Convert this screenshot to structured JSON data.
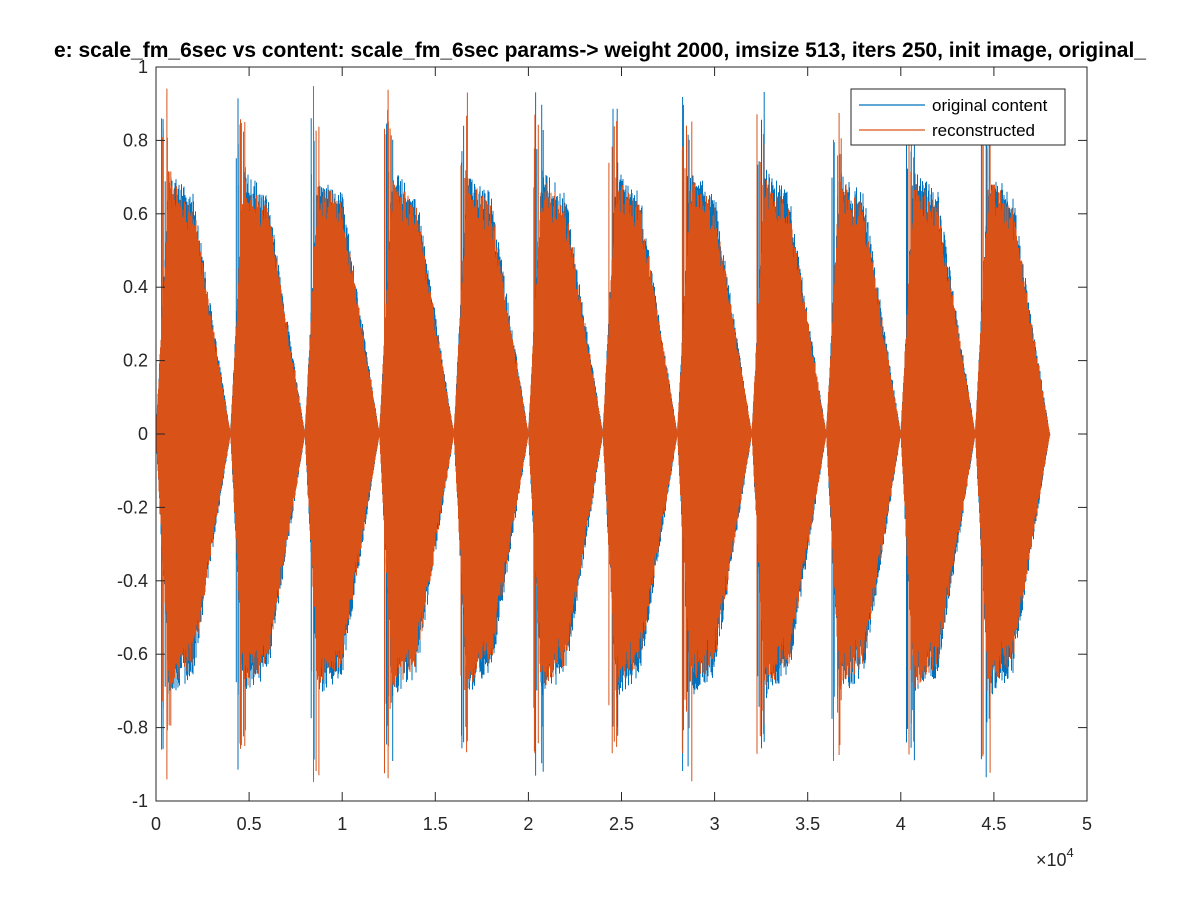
{
  "chart_data": {
    "type": "line",
    "title": "e: scale_fm_6sec vs content: scale_fm_6sec  params-> weight 2000, imsize 513, iters 250, init image, original_",
    "xlabel": "",
    "ylabel": "",
    "xlim": [
      0,
      50000
    ],
    "ylim": [
      -1,
      1
    ],
    "x_ticks": [
      0,
      5000,
      10000,
      15000,
      20000,
      25000,
      30000,
      35000,
      40000,
      45000,
      50000
    ],
    "x_tick_labels": [
      "0",
      "0.5",
      "1",
      "1.5",
      "2",
      "2.5",
      "3",
      "3.5",
      "4",
      "4.5",
      "5"
    ],
    "x_exponent_label": "×10",
    "x_exponent_power": "4",
    "y_ticks": [
      -1,
      -0.8,
      -0.6,
      -0.4,
      -0.2,
      0,
      0.2,
      0.4,
      0.6,
      0.8,
      1
    ],
    "y_tick_labels": [
      "-1",
      "-0.8",
      "-0.6",
      "-0.4",
      "-0.2",
      "0",
      "0.2",
      "0.4",
      "0.6",
      "0.8",
      "1"
    ],
    "grid": false,
    "legend_position": "top-right",
    "segment_count": 12,
    "segment_length": 4000,
    "series": [
      {
        "name": "original content",
        "color": "#0072BD",
        "peak_amplitude": 0.94,
        "envelope": [
          [
            0,
            0
          ],
          [
            700,
            0.72
          ],
          [
            2000,
            0.66
          ],
          [
            4000,
            0
          ]
        ]
      },
      {
        "name": "reconstructed",
        "color": "#D95319",
        "peak_amplitude": 0.95,
        "envelope": [
          [
            0,
            0
          ],
          [
            700,
            0.7
          ],
          [
            2000,
            0.63
          ],
          [
            4000,
            0
          ]
        ]
      }
    ]
  }
}
